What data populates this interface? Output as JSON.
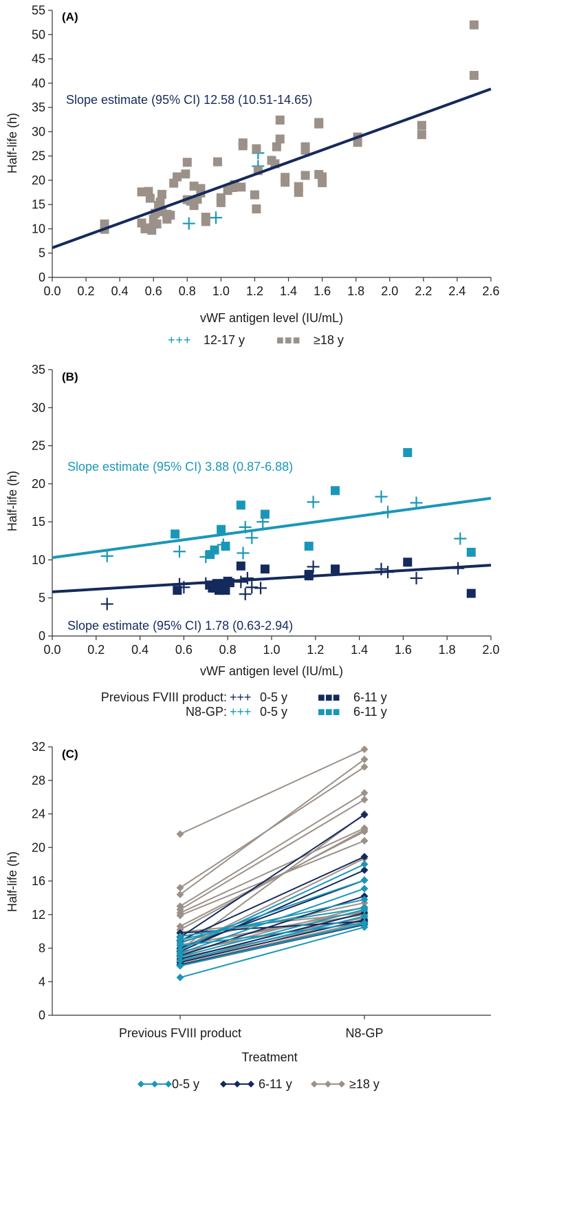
{
  "colors": {
    "navy": "#152a5c",
    "teal": "#1a97b8",
    "gray": "#9b9189",
    "axis": "#333333",
    "text": "#1a1a1a"
  },
  "chart_data": [
    {
      "panel": "A",
      "label": "(A)",
      "type": "scatter",
      "xlabel": "vWF antigen level (IU/mL)",
      "ylabel": "Half-life (h)",
      "xlim": [
        0,
        2.6
      ],
      "ylim": [
        0,
        55
      ],
      "xticks": [
        "0.0",
        "0.2",
        "0.4",
        "0.6",
        "0.8",
        "1.0",
        "1.2",
        "1.4",
        "1.6",
        "1.8",
        "2.0",
        "2.2",
        "2.4",
        "2.6"
      ],
      "yticks": [
        "0",
        "5",
        "10",
        "15",
        "20",
        "25",
        "30",
        "35",
        "40",
        "45",
        "50",
        "55"
      ],
      "annotation": "Slope estimate (95% CI) 12.58 (10.51-14.65)",
      "legend": [
        {
          "name": "12-17 y",
          "glyph": "+++",
          "marker": "plus",
          "color": "teal"
        },
        {
          "name": "≥18 y",
          "glyph": "■■■",
          "marker": "square",
          "color": "gray"
        }
      ],
      "series": [
        {
          "name": "12-17 y",
          "marker": "plus",
          "color": "teal",
          "points": [
            [
              0.81,
              11.1
            ],
            [
              0.97,
              12.3
            ],
            [
              1.22,
              25.6
            ],
            [
              1.22,
              22.9
            ]
          ]
        },
        {
          "name": "≥18 y",
          "marker": "square",
          "color": "gray",
          "points": [
            [
              0.31,
              11.0
            ],
            [
              0.31,
              9.9
            ],
            [
              0.53,
              17.6
            ],
            [
              0.55,
              10.0
            ],
            [
              0.53,
              11.2
            ],
            [
              0.57,
              17.7
            ],
            [
              0.57,
              10.2
            ],
            [
              0.58,
              16.3
            ],
            [
              0.59,
              9.7
            ],
            [
              0.6,
              12.0
            ],
            [
              0.61,
              13.2
            ],
            [
              0.62,
              11.0
            ],
            [
              0.63,
              14.8
            ],
            [
              0.64,
              15.5
            ],
            [
              0.65,
              13.5
            ],
            [
              0.65,
              17.1
            ],
            [
              0.68,
              13.0
            ],
            [
              0.68,
              12.0
            ],
            [
              0.7,
              12.8
            ],
            [
              0.72,
              19.4
            ],
            [
              0.74,
              20.7
            ],
            [
              0.79,
              21.3
            ],
            [
              0.8,
              23.7
            ],
            [
              0.8,
              16.0
            ],
            [
              0.82,
              15.7
            ],
            [
              0.84,
              14.8
            ],
            [
              0.84,
              18.8
            ],
            [
              0.86,
              16.1
            ],
            [
              0.88,
              18.3
            ],
            [
              0.88,
              17.4
            ],
            [
              0.91,
              12.4
            ],
            [
              0.91,
              11.5
            ],
            [
              0.98,
              23.8
            ],
            [
              1.0,
              15.4
            ],
            [
              1.0,
              16.4
            ],
            [
              1.04,
              17.9
            ],
            [
              1.07,
              18.5
            ],
            [
              1.08,
              19.1
            ],
            [
              1.12,
              18.6
            ],
            [
              1.13,
              27.7
            ],
            [
              1.13,
              27.1
            ],
            [
              1.2,
              17.0
            ],
            [
              1.21,
              14.1
            ],
            [
              1.21,
              26.5
            ],
            [
              1.22,
              22.0
            ],
            [
              1.3,
              24.1
            ],
            [
              1.32,
              23.4
            ],
            [
              1.33,
              26.9
            ],
            [
              1.35,
              28.5
            ],
            [
              1.35,
              32.4
            ],
            [
              1.38,
              20.6
            ],
            [
              1.38,
              19.6
            ],
            [
              1.46,
              17.5
            ],
            [
              1.46,
              18.7
            ],
            [
              1.5,
              26.2
            ],
            [
              1.5,
              26.9
            ],
            [
              1.5,
              21.0
            ],
            [
              1.58,
              21.2
            ],
            [
              1.58,
              31.6
            ],
            [
              1.58,
              31.9
            ],
            [
              1.6,
              19.5
            ],
            [
              1.6,
              20.7
            ],
            [
              1.81,
              27.8
            ],
            [
              1.81,
              28.9
            ],
            [
              2.19,
              29.4
            ],
            [
              2.19,
              31.3
            ],
            [
              2.5,
              52.0
            ],
            [
              2.5,
              41.6
            ]
          ]
        }
      ],
      "lines": [
        {
          "color": "navy",
          "x": [
            0,
            2.6
          ],
          "y": [
            6.1,
            38.8
          ]
        }
      ]
    },
    {
      "panel": "B",
      "label": "(B)",
      "type": "scatter",
      "xlabel": "vWF antigen level (IU/mL)",
      "ylabel": "Half-life (h)",
      "xlim": [
        0,
        2.0
      ],
      "ylim": [
        0,
        35
      ],
      "xticks": [
        "0.0",
        "0.2",
        "0.4",
        "0.6",
        "0.8",
        "1.0",
        "1.2",
        "1.4",
        "1.6",
        "1.8",
        "2.0"
      ],
      "yticks": [
        "0",
        "5",
        "10",
        "15",
        "20",
        "25",
        "30",
        "35"
      ],
      "annotations": [
        {
          "text": "Slope estimate (95% CI) 3.88 (0.87-6.88)",
          "color": "teal"
        },
        {
          "text": "Slope estimate (95% CI) 1.78 (0.63-2.94)",
          "color": "navy"
        }
      ],
      "legend": [
        {
          "prefix": "Previous FVIII product:",
          "items": [
            {
              "name": "0-5 y",
              "glyph": "+++",
              "color": "navy"
            },
            {
              "name": "6-11 y",
              "glyph": "■■■",
              "color": "navy"
            }
          ]
        },
        {
          "prefix": "N8-GP:",
          "items": [
            {
              "name": "0-5 y",
              "glyph": "+++",
              "color": "teal"
            },
            {
              "name": "6-11 y",
              "glyph": "■■■",
              "color": "teal"
            }
          ]
        }
      ],
      "series": [
        {
          "name": "Previous FVIII product 0-5 y",
          "marker": "plus",
          "color": "navy",
          "points": [
            [
              0.25,
              4.2
            ],
            [
              0.58,
              6.8
            ],
            [
              0.6,
              6.4
            ],
            [
              0.7,
              6.9
            ],
            [
              0.73,
              6.5
            ],
            [
              0.86,
              7.1
            ],
            [
              0.88,
              5.5
            ],
            [
              0.89,
              7.6
            ],
            [
              0.91,
              6.4
            ],
            [
              0.95,
              6.3
            ],
            [
              1.19,
              9.1
            ],
            [
              1.5,
              8.8
            ],
            [
              1.53,
              8.4
            ],
            [
              1.66,
              7.6
            ],
            [
              1.85,
              8.9
            ]
          ]
        },
        {
          "name": "Previous FVIII product 6-11 y",
          "marker": "square",
          "color": "navy",
          "points": [
            [
              0.57,
              6.0
            ],
            [
              0.72,
              6.7
            ],
            [
              0.73,
              6.3
            ],
            [
              0.75,
              6.9
            ],
            [
              0.76,
              6.0
            ],
            [
              0.77,
              6.3
            ],
            [
              0.78,
              6.9
            ],
            [
              0.79,
              6.0
            ],
            [
              0.8,
              7.2
            ],
            [
              0.81,
              7.0
            ],
            [
              0.86,
              9.2
            ],
            [
              0.97,
              8.8
            ],
            [
              1.17,
              7.9
            ],
            [
              1.17,
              8.1
            ],
            [
              1.29,
              8.8
            ],
            [
              1.62,
              9.7
            ],
            [
              1.91,
              5.6
            ]
          ]
        },
        {
          "name": "N8-GP 0-5 y",
          "marker": "plus",
          "color": "teal",
          "points": [
            [
              0.25,
              10.5
            ],
            [
              0.58,
              11.1
            ],
            [
              0.7,
              10.4
            ],
            [
              0.78,
              12.0
            ],
            [
              0.87,
              10.9
            ],
            [
              0.88,
              14.3
            ],
            [
              0.91,
              12.9
            ],
            [
              0.96,
              15.0
            ],
            [
              1.19,
              17.6
            ],
            [
              1.5,
              18.3
            ],
            [
              1.53,
              16.3
            ],
            [
              1.66,
              17.5
            ],
            [
              1.86,
              12.8
            ]
          ]
        },
        {
          "name": "N8-GP 6-11 y",
          "marker": "square",
          "color": "teal",
          "points": [
            [
              0.56,
              13.4
            ],
            [
              0.72,
              10.7
            ],
            [
              0.74,
              11.3
            ],
            [
              0.77,
              14.0
            ],
            [
              0.79,
              11.8
            ],
            [
              0.86,
              17.2
            ],
            [
              0.97,
              16.0
            ],
            [
              1.17,
              11.8
            ],
            [
              1.29,
              19.1
            ],
            [
              1.62,
              24.1
            ],
            [
              1.91,
              11.0
            ]
          ]
        }
      ],
      "lines": [
        {
          "color": "teal",
          "x": [
            0,
            2.0
          ],
          "y": [
            10.3,
            18.1
          ]
        },
        {
          "color": "navy",
          "x": [
            0,
            2.0
          ],
          "y": [
            5.8,
            9.3
          ]
        }
      ]
    },
    {
      "panel": "C",
      "label": "(C)",
      "type": "line",
      "xlabel": "Treatment",
      "ylabel": "Half-life (h)",
      "categories": [
        "Previous FVIII product",
        "N8-GP"
      ],
      "ylim": [
        0,
        32
      ],
      "yticks": [
        "0",
        "4",
        "8",
        "12",
        "16",
        "20",
        "24",
        "28",
        "32"
      ],
      "legend": [
        {
          "name": "0-5 y",
          "color": "teal"
        },
        {
          "name": "6-11 y",
          "color": "navy"
        },
        {
          "name": "≥18 y",
          "color": "gray"
        }
      ],
      "series": [
        {
          "name": "0-5 y",
          "color": "teal",
          "pairs": [
            [
              4.5,
              10.5
            ],
            [
              6.5,
              11.8
            ],
            [
              7.0,
              12.6
            ],
            [
              7.4,
              15.1
            ],
            [
              7.8,
              18.0
            ],
            [
              8.3,
              11.0
            ],
            [
              8.6,
              16.1
            ],
            [
              9.0,
              13.8
            ],
            [
              9.4,
              12.8
            ],
            [
              5.9,
              10.9
            ]
          ]
        },
        {
          "name": "6-11 y",
          "color": "navy",
          "pairs": [
            [
              5.9,
              10.8
            ],
            [
              6.3,
              11.4
            ],
            [
              6.7,
              12.2
            ],
            [
              7.1,
              14.2
            ],
            [
              7.6,
              17.3
            ],
            [
              8.0,
              16.1
            ],
            [
              8.9,
              18.9
            ],
            [
              9.3,
              23.9
            ],
            [
              9.8,
              11.2
            ],
            [
              6.0,
              10.9
            ]
          ]
        },
        {
          "name": "≥18 y",
          "color": "gray",
          "pairs": [
            [
              21.6,
              31.7
            ],
            [
              15.2,
              29.6
            ],
            [
              14.4,
              30.5
            ],
            [
              13.0,
              26.5
            ],
            [
              12.6,
              25.7
            ],
            [
              12.2,
              22.3
            ],
            [
              11.9,
              20.8
            ],
            [
              10.6,
              21.9
            ],
            [
              10.2,
              22.1
            ],
            [
              9.9,
              12.2
            ],
            [
              8.8,
              13.4
            ],
            [
              8.3,
              12.4
            ],
            [
              7.9,
              18.7
            ],
            [
              7.6,
              11.6
            ],
            [
              7.3,
              12.9
            ],
            [
              6.9,
              11.3
            ],
            [
              6.4,
              11.8
            ],
            [
              6.1,
              11.1
            ],
            [
              7.8,
              24.0
            ],
            [
              8.4,
              12.0
            ]
          ]
        }
      ]
    }
  ]
}
